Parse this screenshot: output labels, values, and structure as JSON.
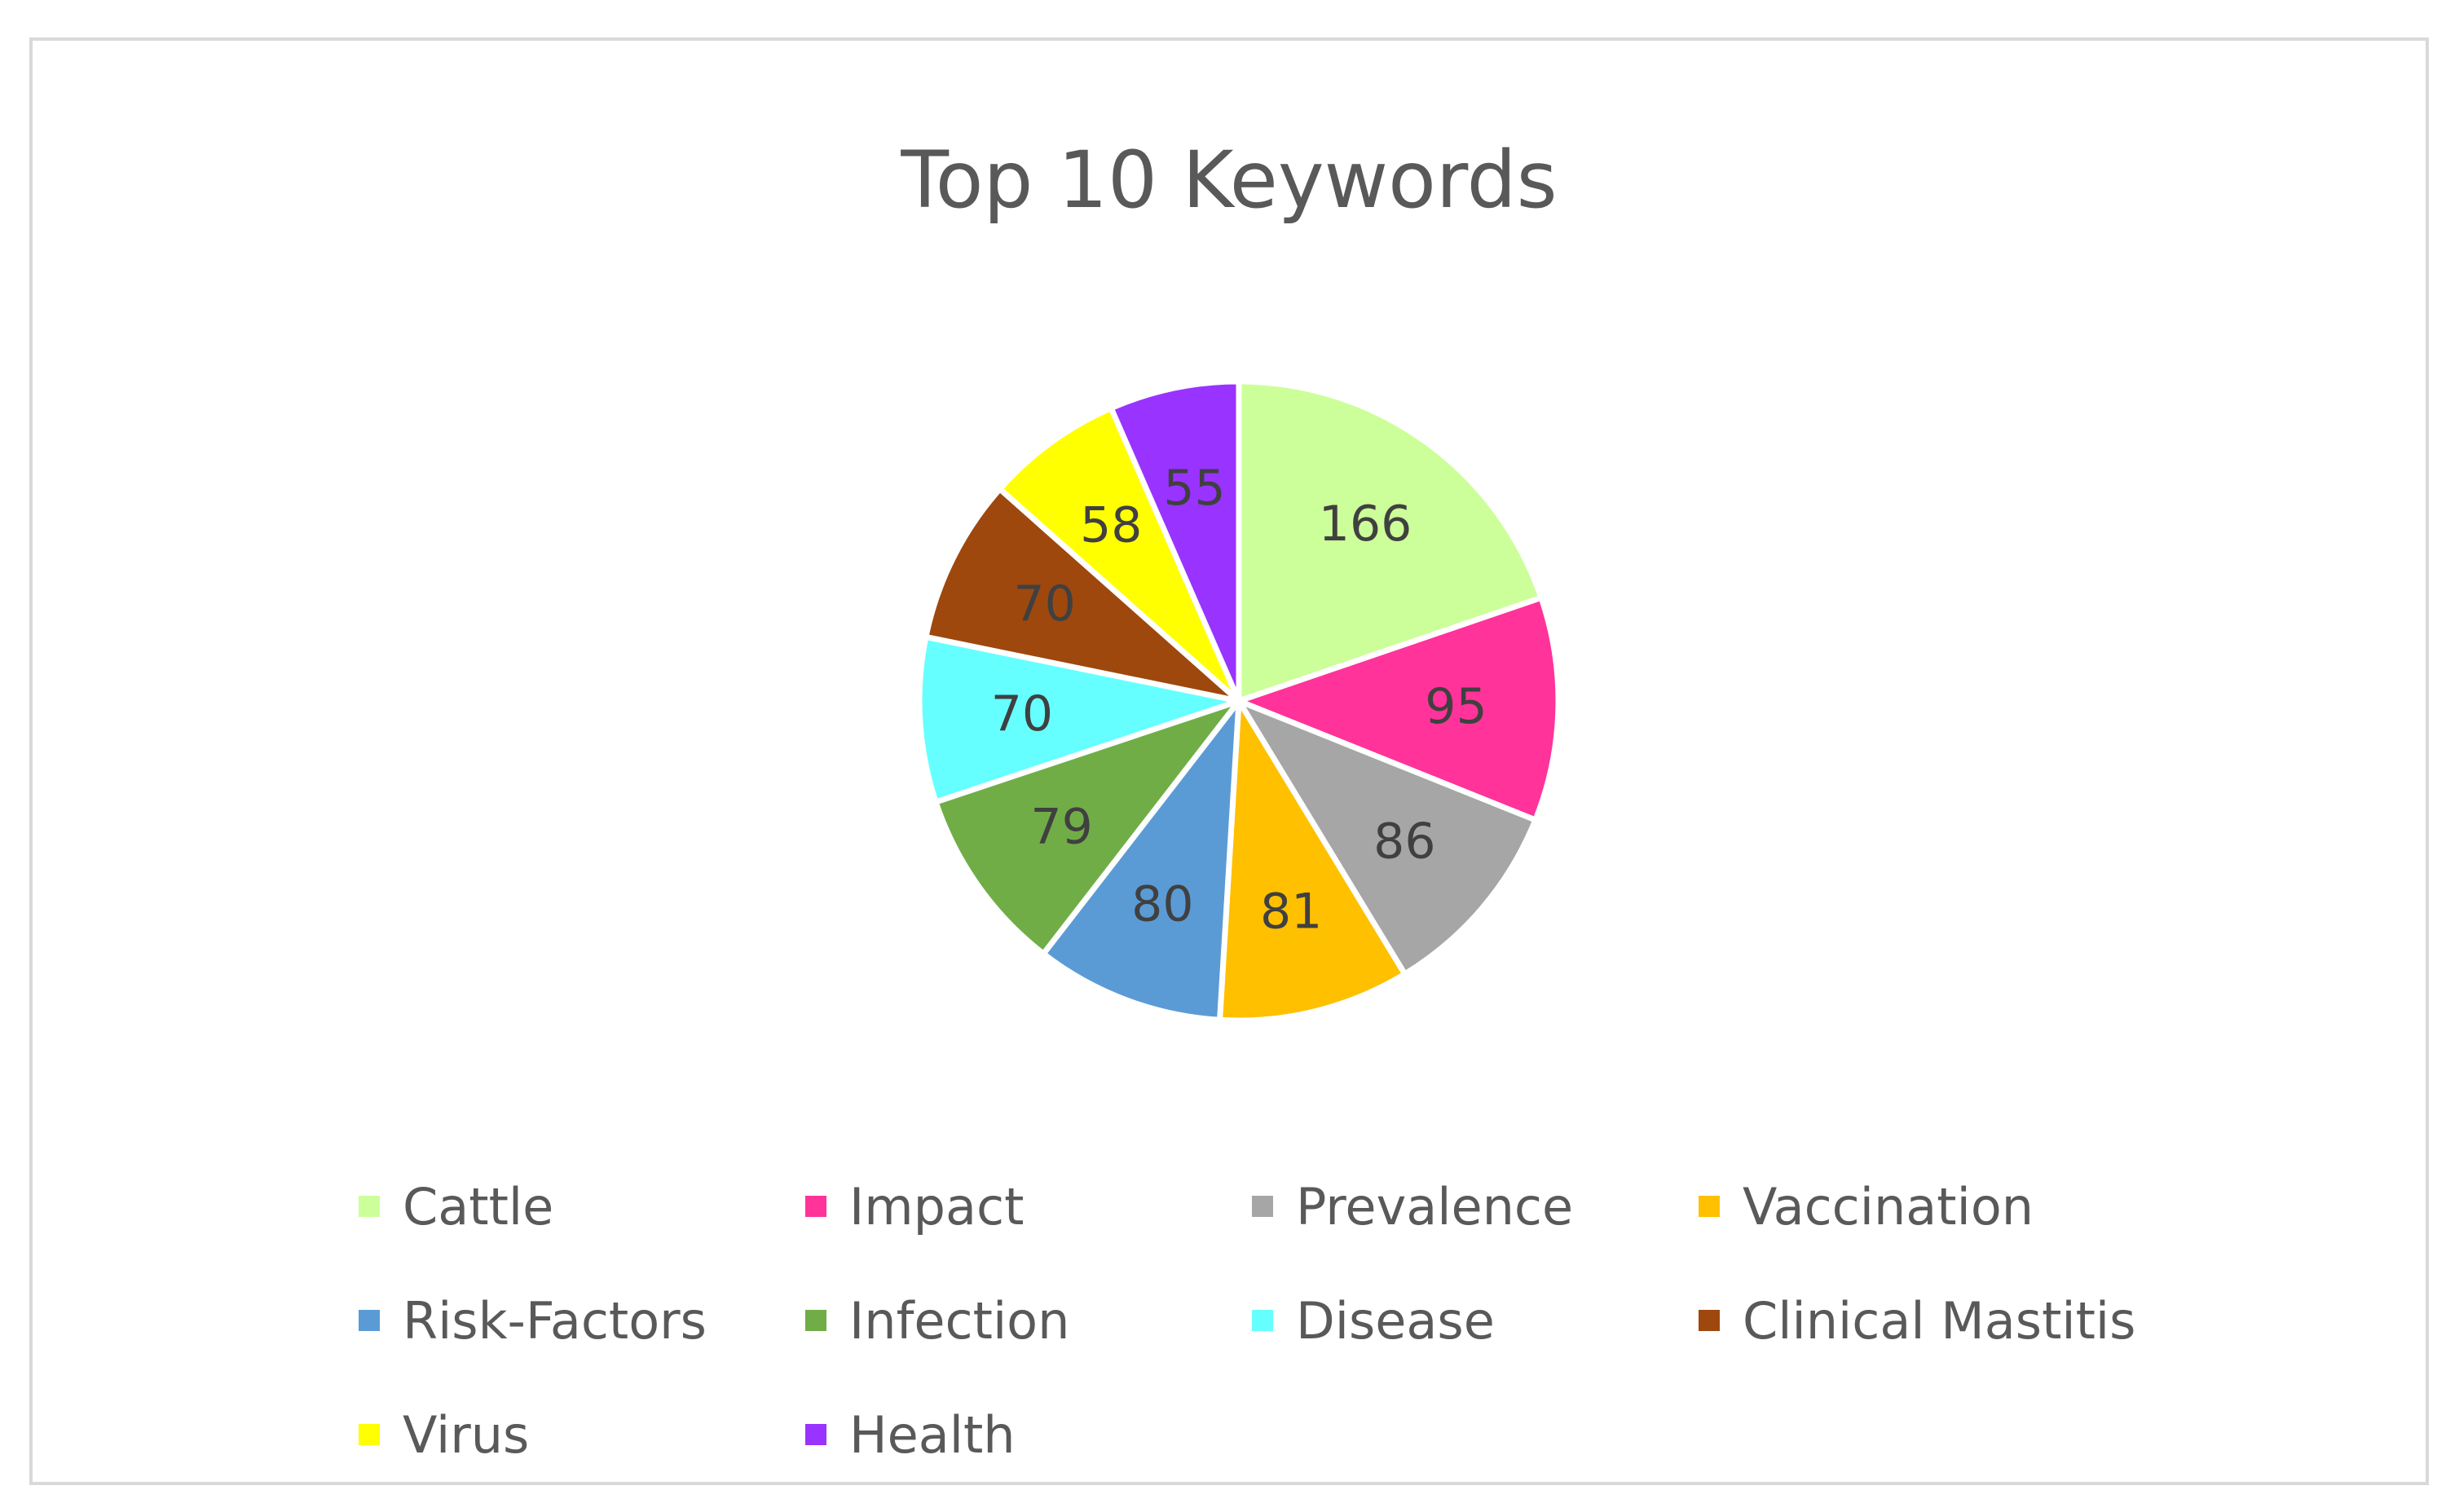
{
  "chart_data": {
    "type": "pie",
    "title": "Top 10 Keywords",
    "legend_position": "bottom",
    "slices": [
      {
        "label": "Cattle",
        "value": 166,
        "color": "#ccff99"
      },
      {
        "label": "Impact",
        "value": 95,
        "color": "#ff3399"
      },
      {
        "label": "Prevalence",
        "value": 86,
        "color": "#a6a6a6"
      },
      {
        "label": "Vaccination",
        "value": 81,
        "color": "#ffc000"
      },
      {
        "label": "Risk-Factors",
        "value": 80,
        "color": "#5b9bd5"
      },
      {
        "label": "Infection",
        "value": 79,
        "color": "#70ad47"
      },
      {
        "label": "Disease",
        "value": 70,
        "color": "#66ffff"
      },
      {
        "label": "Clinical Mastitis",
        "value": 70,
        "color": "#9e480e"
      },
      {
        "label": "Virus",
        "value": 58,
        "color": "#ffff00"
      },
      {
        "label": "Health",
        "value": 55,
        "color": "#9933ff"
      }
    ]
  }
}
